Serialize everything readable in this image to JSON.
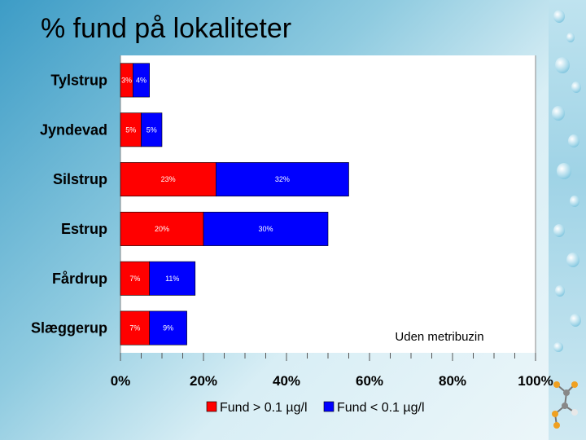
{
  "title": "% fund på lokaliteter",
  "chart_data": {
    "type": "bar",
    "orientation": "horizontal",
    "stacked": true,
    "categories": [
      "Tylstrup",
      "Jyndevad",
      "Silstrup",
      "Estrup",
      "Fårdrup",
      "Slæggerup"
    ],
    "series": [
      {
        "name": "Fund > 0.1 µg/l",
        "color": "#ff0000",
        "values": [
          3,
          5,
          23,
          20,
          7,
          7
        ],
        "labels": [
          "3%",
          "5%",
          "23%",
          "20%",
          "7%",
          "7%"
        ]
      },
      {
        "name": "Fund < 0.1 µg/l",
        "color": "#0000ff",
        "values": [
          4,
          5,
          32,
          30,
          11,
          9
        ],
        "labels": [
          "4%",
          "5%",
          "32%",
          "30%",
          "11%",
          "9%"
        ]
      }
    ],
    "xlim": [
      0,
      100
    ],
    "xticks": [
      "0%",
      "20%",
      "40%",
      "60%",
      "80%",
      "100%"
    ],
    "xtick_values": [
      0,
      20,
      40,
      60,
      80,
      100
    ],
    "annotation": "Uden metribuzin",
    "legend_position": "bottom",
    "grid": false
  }
}
